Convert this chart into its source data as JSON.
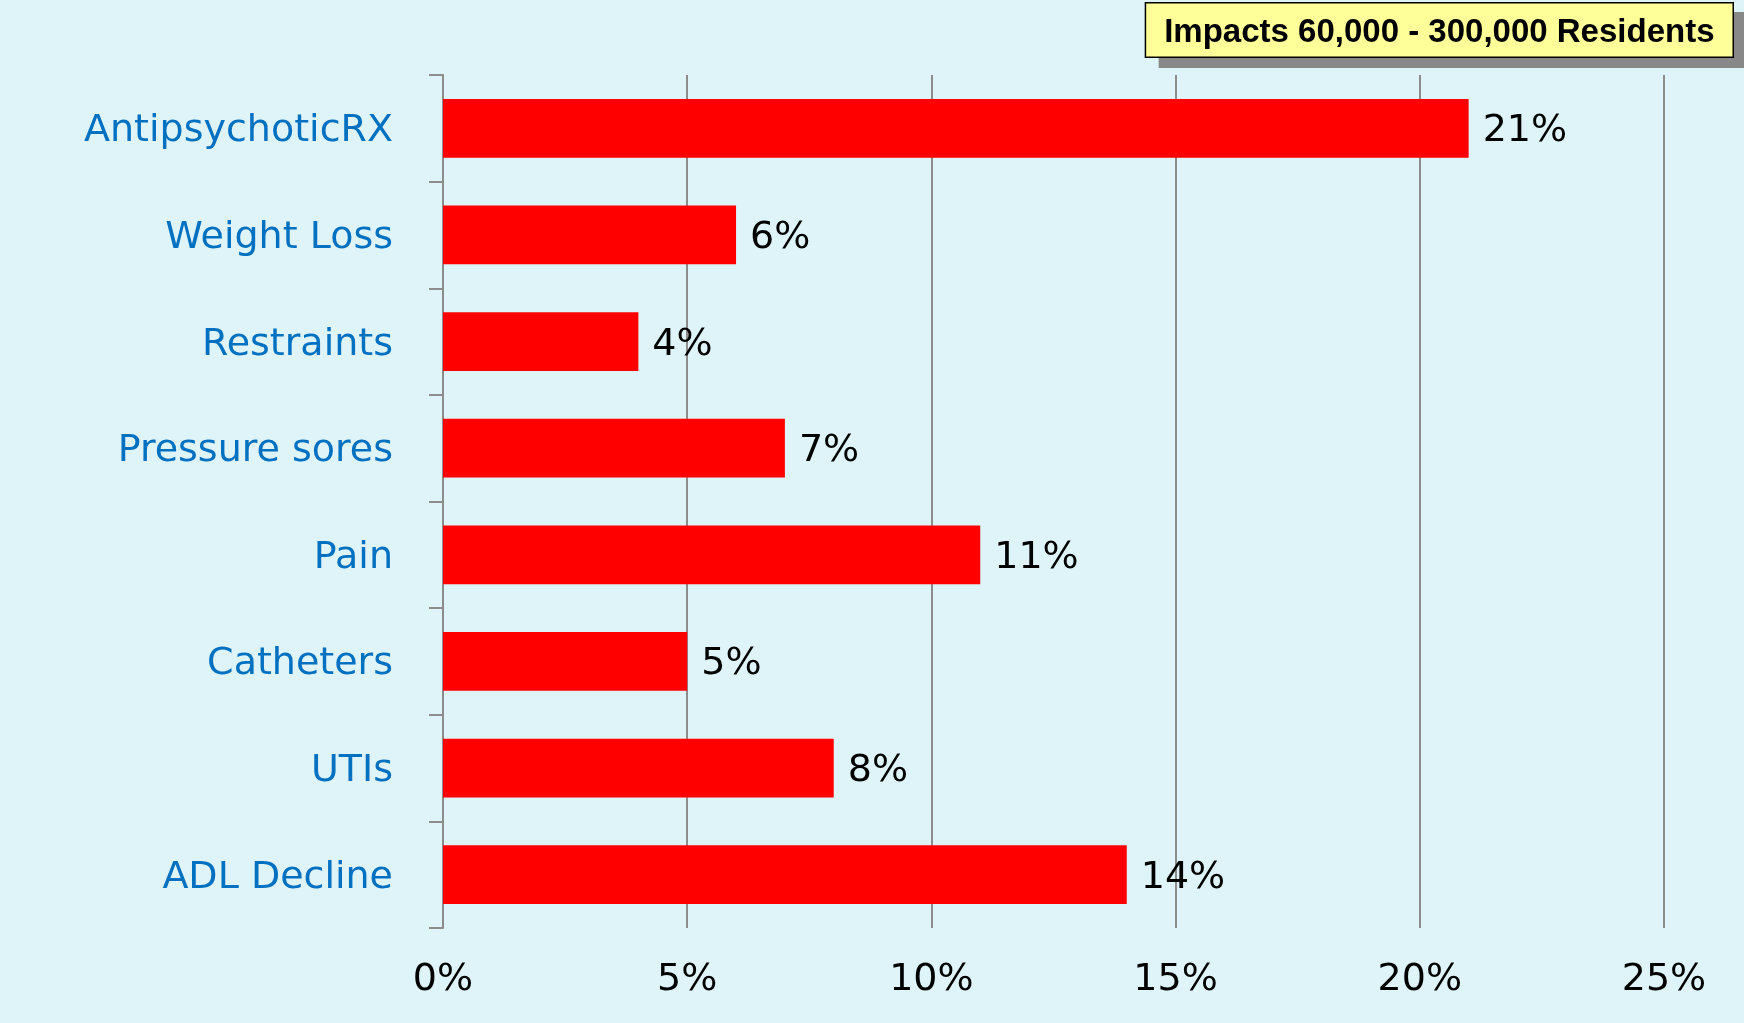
{
  "chart_data": {
    "type": "bar",
    "orientation": "horizontal",
    "categories": [
      "AntipsychoticRX",
      "Weight Loss",
      "Restraints",
      "Pressure sores",
      "Pain",
      "Catheters",
      "UTIs",
      "ADL Decline"
    ],
    "values": [
      21,
      6,
      4,
      7,
      11,
      5,
      8,
      14
    ],
    "value_labels": [
      "21%",
      "6%",
      "4%",
      "7%",
      "11%",
      "5%",
      "8%",
      "14%"
    ],
    "color": "#ff0000",
    "xlim": [
      0,
      25
    ],
    "xticks": [
      {
        "value": 0,
        "label": "0%"
      },
      {
        "value": 5,
        "label": "5%"
      },
      {
        "value": 10,
        "label": "10%"
      },
      {
        "value": 15,
        "label": "15%"
      },
      {
        "value": 20,
        "label": "20%"
      },
      {
        "value": 25,
        "label": "25%"
      }
    ],
    "grid": "x",
    "annotations": [
      "Impacts 60,000 - 300,000 Residents"
    ]
  }
}
